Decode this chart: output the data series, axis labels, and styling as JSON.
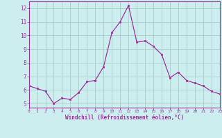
{
  "x": [
    0,
    1,
    2,
    3,
    4,
    5,
    6,
    7,
    8,
    9,
    10,
    11,
    12,
    13,
    14,
    15,
    16,
    17,
    18,
    19,
    20,
    21,
    22,
    23
  ],
  "y": [
    6.3,
    6.1,
    5.9,
    5.0,
    5.4,
    5.3,
    5.8,
    6.6,
    6.7,
    7.7,
    10.2,
    11.0,
    12.2,
    9.5,
    9.6,
    9.2,
    8.6,
    6.9,
    7.3,
    6.7,
    6.5,
    6.3,
    5.9,
    5.7
  ],
  "xlabel": "Windchill (Refroidissement éolien,°C)",
  "line_color": "#993399",
  "marker_color": "#993399",
  "bg_color": "#cceeee",
  "grid_color": "#aacccc",
  "axis_label_color": "#993399",
  "tick_label_color": "#993399",
  "spine_color": "#993399",
  "xlim": [
    0,
    23
  ],
  "ylim": [
    4.7,
    12.5
  ],
  "yticks": [
    5,
    6,
    7,
    8,
    9,
    10,
    11,
    12
  ],
  "xticks": [
    0,
    1,
    2,
    3,
    4,
    5,
    6,
    7,
    8,
    9,
    10,
    11,
    12,
    13,
    14,
    15,
    16,
    17,
    18,
    19,
    20,
    21,
    22,
    23
  ]
}
